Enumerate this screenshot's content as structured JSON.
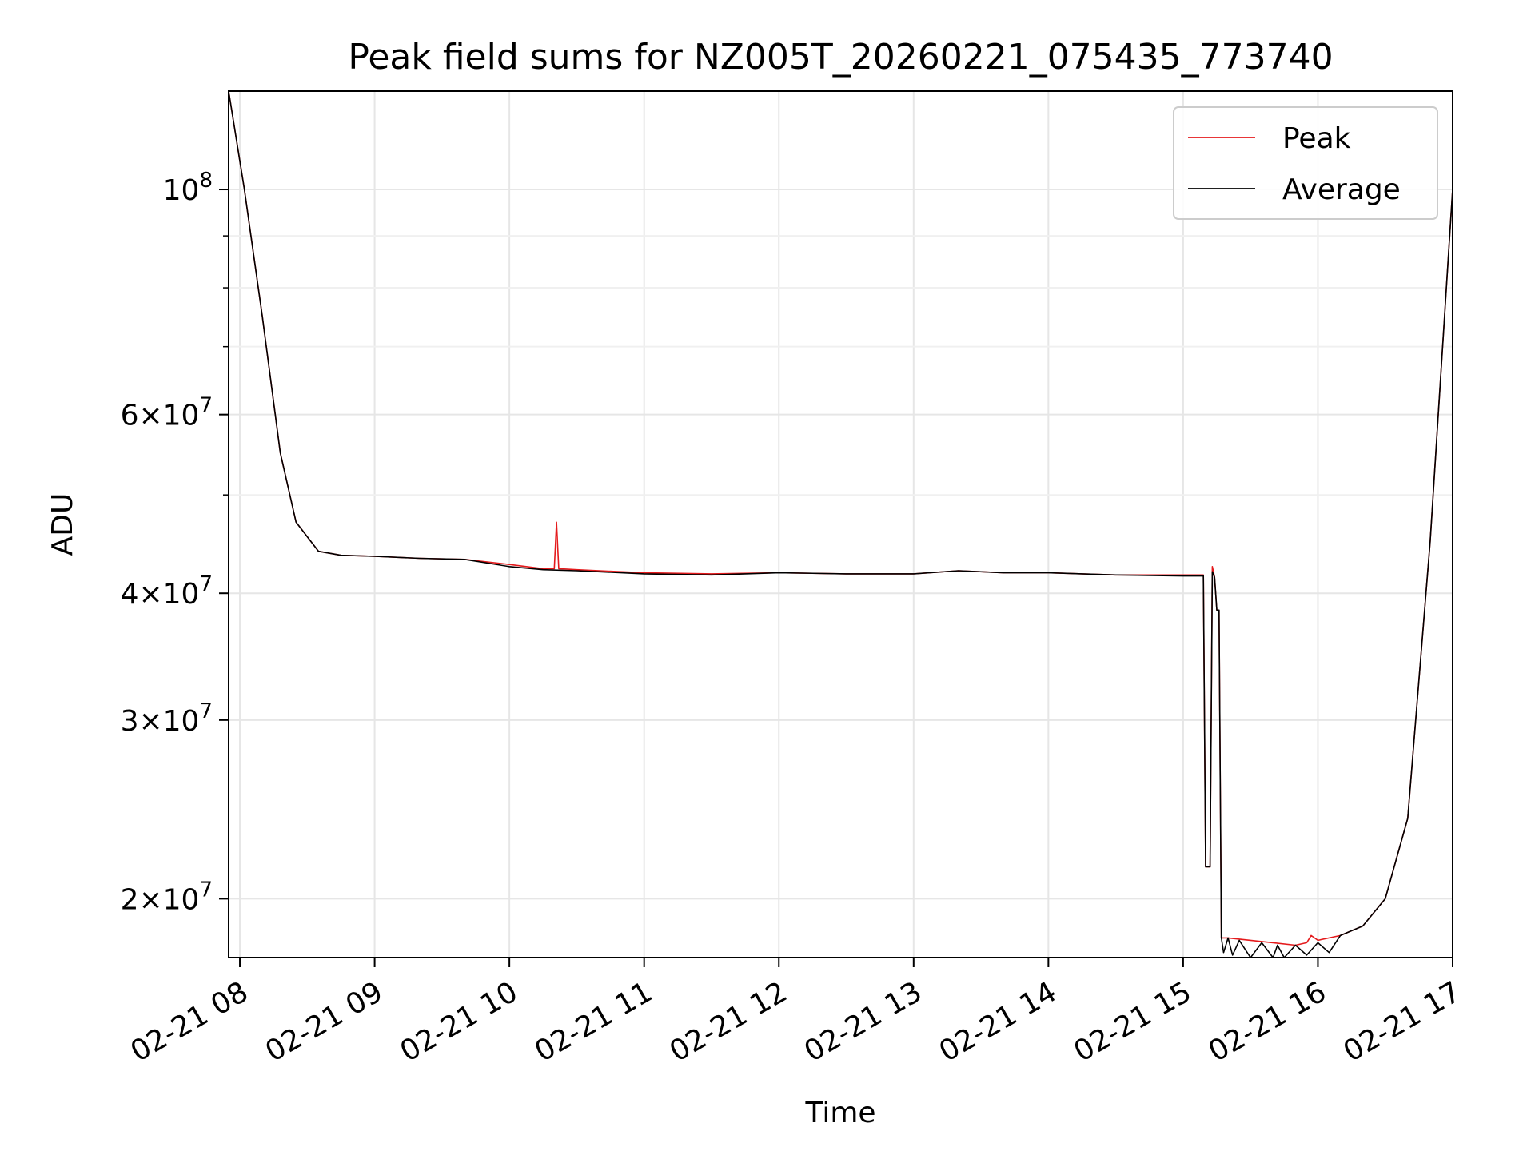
{
  "chart_data": {
    "type": "line",
    "title": "Peak field sums for NZ005T_20260221_075435_773740",
    "xlabel": "Time",
    "ylabel": "ADU",
    "x_axis": {
      "kind": "datetime",
      "range": [
        "2026-02-21 07:55",
        "2026-02-21 17:00"
      ],
      "ticks": [
        "02-21 08",
        "02-21 09",
        "02-21 10",
        "02-21 11",
        "02-21 12",
        "02-21 13",
        "02-21 14",
        "02-21 15",
        "02-21 16",
        "02-21 17"
      ]
    },
    "y_axis": {
      "scale": "log",
      "range": [
        17500000,
        125000000
      ],
      "major_ticks": [
        {
          "value": 100000000,
          "mantissa": "",
          "exponent": "8"
        },
        {
          "value": 60000000,
          "mantissa": "6",
          "exponent": "7"
        },
        {
          "value": 40000000,
          "mantissa": "4",
          "exponent": "7"
        },
        {
          "value": 30000000,
          "mantissa": "3",
          "exponent": "7"
        },
        {
          "value": 20000000,
          "mantissa": "2",
          "exponent": "7"
        }
      ]
    },
    "grid": true,
    "legend": {
      "position": "top-right",
      "entries": [
        {
          "label": "Peak",
          "color": "#e41a1c"
        },
        {
          "label": "Average",
          "color": "#000000"
        }
      ]
    },
    "series": [
      {
        "name": "Peak",
        "color": "#e41a1c",
        "x": [
          "2026-02-21 07:55",
          "2026-02-21 08:02",
          "2026-02-21 08:10",
          "2026-02-21 08:18",
          "2026-02-21 08:25",
          "2026-02-21 08:35",
          "2026-02-21 08:45",
          "2026-02-21 09:00",
          "2026-02-21 09:20",
          "2026-02-21 09:40",
          "2026-02-21 10:00",
          "2026-02-21 10:15",
          "2026-02-21 10:20",
          "2026-02-21 10:21",
          "2026-02-21 10:22",
          "2026-02-21 10:30",
          "2026-02-21 11:00",
          "2026-02-21 11:30",
          "2026-02-21 12:00",
          "2026-02-21 12:30",
          "2026-02-21 13:00",
          "2026-02-21 13:20",
          "2026-02-21 13:40",
          "2026-02-21 14:00",
          "2026-02-21 14:30",
          "2026-02-21 15:00",
          "2026-02-21 15:09",
          "2026-02-21 15:10",
          "2026-02-21 15:12",
          "2026-02-21 15:13",
          "2026-02-21 15:14",
          "2026-02-21 15:15",
          "2026-02-21 15:16",
          "2026-02-21 15:17",
          "2026-02-21 15:18",
          "2026-02-21 15:19",
          "2026-02-21 15:20",
          "2026-02-21 15:30",
          "2026-02-21 15:40",
          "2026-02-21 15:50",
          "2026-02-21 15:55",
          "2026-02-21 15:57",
          "2026-02-21 16:00",
          "2026-02-21 16:10",
          "2026-02-21 16:20",
          "2026-02-21 16:30",
          "2026-02-21 16:40",
          "2026-02-21 16:50",
          "2026-02-21 17:00"
        ],
        "y": [
          125000000,
          100000000,
          75000000,
          55000000,
          47000000,
          44000000,
          43600000,
          43500000,
          43300000,
          43200000,
          42700000,
          42300000,
          42300000,
          47000000,
          42300000,
          42200000,
          41900000,
          41800000,
          41900000,
          41800000,
          41800000,
          42100000,
          41900000,
          41900000,
          41700000,
          41700000,
          41700000,
          21500000,
          21500000,
          42500000,
          41500000,
          38500000,
          38500000,
          18300000,
          18300000,
          18300000,
          18300000,
          18200000,
          18100000,
          18000000,
          18100000,
          18400000,
          18200000,
          18400000,
          18800000,
          20000000,
          24000000,
          45000000,
          100000000
        ]
      },
      {
        "name": "Average",
        "color": "#000000",
        "x": [
          "2026-02-21 07:55",
          "2026-02-21 08:02",
          "2026-02-21 08:10",
          "2026-02-21 08:18",
          "2026-02-21 08:25",
          "2026-02-21 08:35",
          "2026-02-21 08:45",
          "2026-02-21 09:00",
          "2026-02-21 09:20",
          "2026-02-21 09:40",
          "2026-02-21 10:00",
          "2026-02-21 10:15",
          "2026-02-21 10:30",
          "2026-02-21 11:00",
          "2026-02-21 11:30",
          "2026-02-21 12:00",
          "2026-02-21 12:30",
          "2026-02-21 13:00",
          "2026-02-21 13:20",
          "2026-02-21 13:40",
          "2026-02-21 14:00",
          "2026-02-21 14:30",
          "2026-02-21 15:00",
          "2026-02-21 15:09",
          "2026-02-21 15:10",
          "2026-02-21 15:12",
          "2026-02-21 15:13",
          "2026-02-21 15:14",
          "2026-02-21 15:15",
          "2026-02-21 15:16",
          "2026-02-21 15:17",
          "2026-02-21 15:18",
          "2026-02-21 15:20",
          "2026-02-21 15:22",
          "2026-02-21 15:25",
          "2026-02-21 15:30",
          "2026-02-21 15:35",
          "2026-02-21 15:40",
          "2026-02-21 15:42",
          "2026-02-21 15:45",
          "2026-02-21 15:50",
          "2026-02-21 15:55",
          "2026-02-21 16:00",
          "2026-02-21 16:05",
          "2026-02-21 16:10",
          "2026-02-21 16:20",
          "2026-02-21 16:30",
          "2026-02-21 16:40",
          "2026-02-21 16:50",
          "2026-02-21 17:00"
        ],
        "y": [
          125000000,
          100000000,
          75000000,
          55000000,
          47000000,
          44000000,
          43600000,
          43500000,
          43300000,
          43200000,
          42500000,
          42200000,
          42100000,
          41800000,
          41700000,
          41900000,
          41800000,
          41800000,
          42100000,
          41900000,
          41900000,
          41700000,
          41600000,
          41600000,
          21500000,
          21500000,
          42000000,
          41500000,
          38500000,
          38500000,
          18300000,
          17700000,
          18300000,
          17600000,
          18200000,
          17500000,
          18100000,
          17500000,
          18000000,
          17500000,
          18000000,
          17600000,
          18100000,
          17700000,
          18400000,
          18800000,
          20000000,
          24000000,
          45000000,
          100000000
        ]
      }
    ]
  }
}
